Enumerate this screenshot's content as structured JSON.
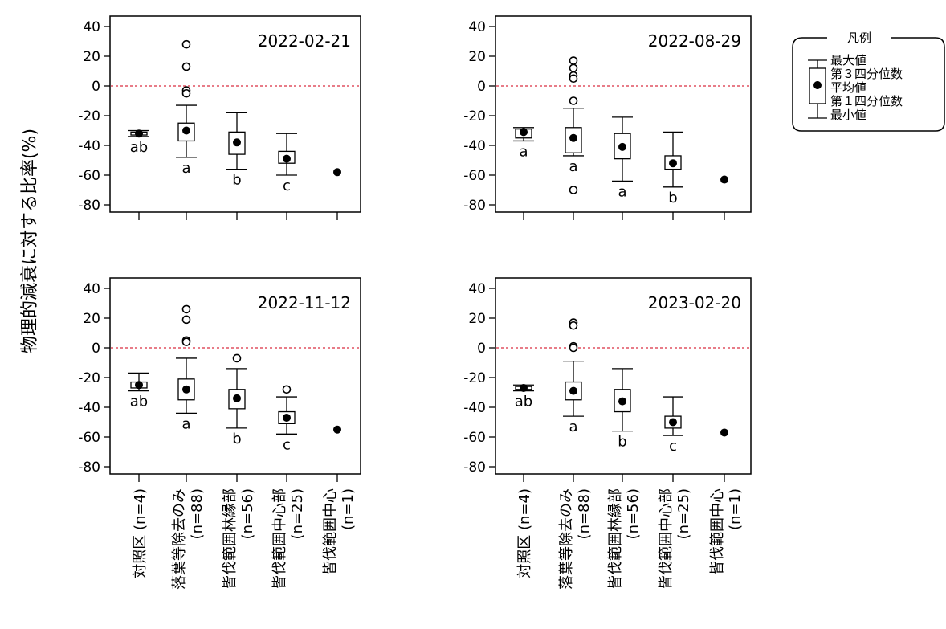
{
  "figure": {
    "ylabel": "物理的減衰に対する比率(%)"
  },
  "legend": {
    "title": "凡例",
    "items": [
      "最大値",
      "第３四分位数",
      "平均値",
      "第１四分位数",
      "最小値"
    ]
  },
  "chart_data": [
    {
      "type": "box",
      "title": "2022-02-21",
      "ylim": [
        -80,
        40
      ],
      "yticks": [
        40,
        20,
        0,
        -20,
        -40,
        -60,
        -80
      ],
      "reference_line": 0,
      "categories": [
        "対照区 (n=4)",
        "落葉等除去のみ (n=88)",
        "皆伐範囲林縁部 (n=56)",
        "皆伐範囲中心部 (n=25)",
        "皆伐範囲中心 (n=1)"
      ],
      "boxes": [
        {
          "min": -34,
          "q1": -33,
          "mean": -32,
          "q3": -31,
          "max": -30,
          "outliers": [],
          "letter": "ab"
        },
        {
          "min": -48,
          "q1": -37,
          "mean": -30,
          "q3": -25,
          "max": -13,
          "outliers": [
            28,
            13,
            -3,
            -5
          ],
          "letter": "a"
        },
        {
          "min": -56,
          "q1": -46,
          "mean": -38,
          "q3": -31,
          "max": -18,
          "outliers": [],
          "letter": "b"
        },
        {
          "min": -60,
          "q1": -52,
          "mean": -49,
          "q3": -44,
          "max": -32,
          "outliers": [],
          "letter": "c"
        },
        {
          "mean": -58,
          "outliers": [],
          "letter": ""
        }
      ]
    },
    {
      "type": "box",
      "title": "2022-08-29",
      "ylim": [
        -80,
        40
      ],
      "yticks": [
        40,
        20,
        0,
        -20,
        -40,
        -60,
        -80
      ],
      "reference_line": 0,
      "categories": [
        "対照区 (n=4)",
        "落葉等除去のみ (n=88)",
        "皆伐範囲林縁部 (n=56)",
        "皆伐範囲中心部 (n=25)",
        "皆伐範囲中心 (n=1)"
      ],
      "boxes": [
        {
          "min": -37,
          "q1": -35,
          "mean": -31,
          "q3": -29,
          "max": -28,
          "outliers": [],
          "letter": "a"
        },
        {
          "min": -47,
          "q1": -45,
          "mean": -35,
          "q3": -28,
          "max": -15,
          "outliers": [
            17,
            12,
            7,
            5,
            -10,
            -70
          ],
          "letter": "a"
        },
        {
          "min": -64,
          "q1": -49,
          "mean": -41,
          "q3": -32,
          "max": -21,
          "outliers": [],
          "letter": "a"
        },
        {
          "min": -68,
          "q1": -56,
          "mean": -52,
          "q3": -47,
          "max": -31,
          "outliers": [],
          "letter": "b"
        },
        {
          "mean": -63,
          "outliers": [],
          "letter": ""
        }
      ]
    },
    {
      "type": "box",
      "title": "2022-11-12",
      "ylim": [
        -80,
        40
      ],
      "yticks": [
        40,
        20,
        0,
        -20,
        -40,
        -60,
        -80
      ],
      "reference_line": 0,
      "categories": [
        "対照区 (n=4)",
        "落葉等除去のみ (n=88)",
        "皆伐範囲林縁部 (n=56)",
        "皆伐範囲中心部 (n=25)",
        "皆伐範囲中心 (n=1)"
      ],
      "boxes": [
        {
          "min": -29,
          "q1": -27,
          "mean": -25,
          "q3": -23,
          "max": -17,
          "outliers": [],
          "letter": "ab"
        },
        {
          "min": -44,
          "q1": -35,
          "mean": -28,
          "q3": -21,
          "max": -7,
          "outliers": [
            26,
            19,
            5,
            4
          ],
          "letter": "a"
        },
        {
          "min": -54,
          "q1": -41,
          "mean": -34,
          "q3": -28,
          "max": -14,
          "outliers": [
            -7
          ],
          "letter": "b"
        },
        {
          "min": -58,
          "q1": -51,
          "mean": -47,
          "q3": -43,
          "max": -33,
          "outliers": [
            -28
          ],
          "letter": "c"
        },
        {
          "mean": -55,
          "outliers": [],
          "letter": ""
        }
      ]
    },
    {
      "type": "box",
      "title": "2023-02-20",
      "ylim": [
        -80,
        40
      ],
      "yticks": [
        40,
        20,
        0,
        -20,
        -40,
        -60,
        -80
      ],
      "reference_line": 0,
      "categories": [
        "対照区 (n=4)",
        "落葉等除去のみ (n=88)",
        "皆伐範囲林縁部 (n=56)",
        "皆伐範囲中心部 (n=25)",
        "皆伐範囲中心 (n=1)"
      ],
      "boxes": [
        {
          "min": -29,
          "q1": -28,
          "mean": -27,
          "q3": -26,
          "max": -25,
          "outliers": [],
          "letter": "ab"
        },
        {
          "min": -46,
          "q1": -35,
          "mean": -29,
          "q3": -23,
          "max": -9,
          "outliers": [
            17,
            15,
            1,
            0
          ],
          "letter": "a"
        },
        {
          "min": -56,
          "q1": -43,
          "mean": -36,
          "q3": -28,
          "max": -14,
          "outliers": [],
          "letter": "b"
        },
        {
          "min": -59,
          "q1": -54,
          "mean": -50,
          "q3": -46,
          "max": -33,
          "outliers": [],
          "letter": "c"
        },
        {
          "mean": -57,
          "outliers": [],
          "letter": ""
        }
      ]
    }
  ],
  "xaxis_labels": [
    {
      "lines": [
        "対照区 (n=4)"
      ]
    },
    {
      "lines": [
        "落葉等除去のみ",
        "(n=88)"
      ]
    },
    {
      "lines": [
        "皆伐範囲林縁部",
        "(n=56)"
      ]
    },
    {
      "lines": [
        "皆伐範囲中心部",
        "(n=25)"
      ]
    },
    {
      "lines": [
        "皆伐範囲中心",
        "(n=1)"
      ]
    }
  ],
  "colors": {
    "reference_line": "#e05060",
    "ink": "#000000"
  }
}
